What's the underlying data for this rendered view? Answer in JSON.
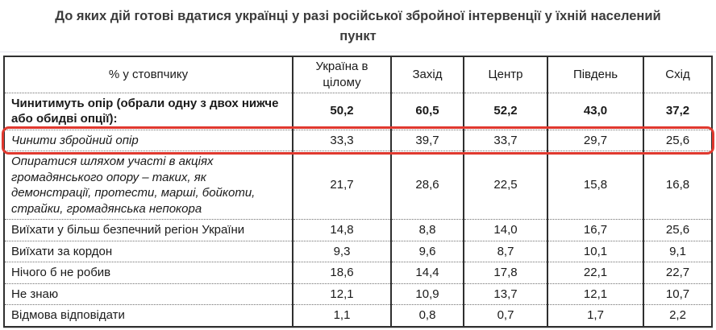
{
  "page": {
    "title": "До яких дій готові вдатися українці у разі російської збройної інтервенції у їхній населений пункт"
  },
  "table": {
    "header": [
      "% у стовпчику",
      "Україна в цілому",
      "Захід",
      "Центр",
      "Південь",
      "Схід"
    ],
    "rows": [
      {
        "label": "Чинитимуть опір (обрали одну з двох нижче або обидві опції):",
        "values": [
          "50,2",
          "60,5",
          "52,2",
          "43,0",
          "37,2"
        ]
      },
      {
        "label": "Чинити збройний опір",
        "values": [
          "33,3",
          "39,7",
          "33,7",
          "29,7",
          "25,6"
        ]
      },
      {
        "label": "Опиратися шляхом участі в акціях громадянського опору – таких, як демонстрації, протести, марші, бойкоти, страйки, громадянська непокора",
        "values": [
          "21,7",
          "28,6",
          "22,5",
          "15,8",
          "16,8"
        ]
      },
      {
        "label": "Виїхати у більш безпечний регіон України",
        "values": [
          "14,8",
          "8,8",
          "14,0",
          "16,7",
          "25,6"
        ]
      },
      {
        "label": "Виїхати за кордон",
        "values": [
          "9,3",
          "9,6",
          "8,7",
          "10,1",
          "9,1"
        ]
      },
      {
        "label": "Нічого б не робив",
        "values": [
          "18,6",
          "14,4",
          "17,8",
          "22,1",
          "22,7"
        ]
      },
      {
        "label": "Не знаю",
        "values": [
          "12,1",
          "10,9",
          "13,7",
          "12,1",
          "10,7"
        ]
      },
      {
        "label": "Відмова відповідати",
        "values": [
          "1,1",
          "0,8",
          "0,7",
          "1,7",
          "2,2"
        ]
      }
    ]
  },
  "chart_data": {
    "type": "table",
    "title": "До яких дій готові вдатися українці у разі російської збройної інтервенції у їхній населений пункт",
    "unit": "% у стовпчику",
    "columns": [
      "Україна в цілому",
      "Захід",
      "Центр",
      "Південь",
      "Схід"
    ],
    "rows": [
      {
        "label": "Чинитимуть опір (обрали одну з двох нижче або обидві опції):",
        "values": [
          50.2,
          60.5,
          52.2,
          43.0,
          37.2
        ],
        "emphasis": "bold",
        "highlighted": false
      },
      {
        "label": "Чинити збройний опір",
        "values": [
          33.3,
          39.7,
          33.7,
          29.7,
          25.6
        ],
        "emphasis": "italic",
        "highlighted": true
      },
      {
        "label": "Опиратися шляхом участі в акціях громадянського опору – таких, як демонстрації, протести, марші, бойкоти, страйки, громадянська непокора",
        "values": [
          21.7,
          28.6,
          22.5,
          15.8,
          16.8
        ],
        "emphasis": "italic",
        "highlighted": false
      },
      {
        "label": "Виїхати у більш безпечний регіон України",
        "values": [
          14.8,
          8.8,
          14.0,
          16.7,
          25.6
        ],
        "emphasis": "none",
        "highlighted": false
      },
      {
        "label": "Виїхати за кордон",
        "values": [
          9.3,
          9.6,
          8.7,
          10.1,
          9.1
        ],
        "emphasis": "none",
        "highlighted": false
      },
      {
        "label": "Нічого б не робив",
        "values": [
          18.6,
          14.4,
          17.8,
          22.1,
          22.7
        ],
        "emphasis": "none",
        "highlighted": false
      },
      {
        "label": "Не знаю",
        "values": [
          12.1,
          10.9,
          13.7,
          12.1,
          10.7
        ],
        "emphasis": "none",
        "highlighted": false
      },
      {
        "label": "Відмова відповідати",
        "values": [
          1.1,
          0.8,
          0.7,
          1.7,
          2.2
        ],
        "emphasis": "none",
        "highlighted": false
      }
    ],
    "annotation": "red rounded outline around row: Чинити збройний опір"
  },
  "colors": {
    "highlight_border": "#e0392f",
    "table_border": "#2f2f2f",
    "title_text": "#3b3b3b"
  }
}
